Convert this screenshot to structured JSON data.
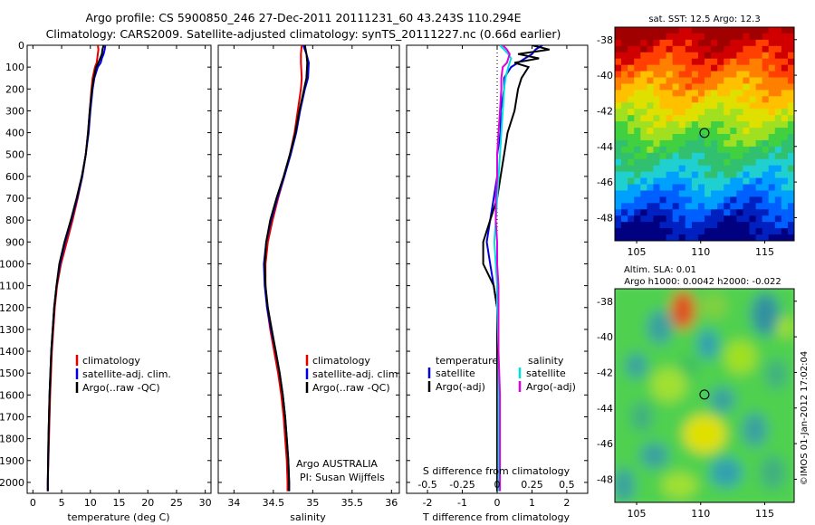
{
  "header": {
    "line1": "Argo profile: CS 5900850_246 27-Dec-2011 20111231_60 43.243S 110.294E",
    "line2": "Climatology: CARS2009. Satellite-adjusted climatology: synTS_20111227.nc (0.66d earlier)"
  },
  "sst_title": "sat. SST: 12.5 Argo: 12.3",
  "sla_title1": "Altim. SLA: 0.01",
  "sla_title2": "Argo h1000: 0.0042 h2000: -0.022",
  "watermark": "©IMOS 01-Jan-2012 17:02:04",
  "panel_notes": {
    "argo_country": "Argo AUSTRALIA",
    "pi": "PI: Susan Wijffels"
  },
  "colors": {
    "climatology": "#e00000",
    "satellite": "#0000e0",
    "argo": "#000000",
    "cyan": "#00e0e0",
    "magenta": "#e000e0"
  },
  "chart_data": [
    {
      "type": "line",
      "panel": "temperature",
      "xlabel": "temperature (deg C)",
      "ylabel": "",
      "xlim": [
        -1,
        31
      ],
      "ylim": [
        2050,
        0
      ],
      "xticks": [
        0,
        5,
        10,
        15,
        20,
        25,
        30
      ],
      "yticks": [
        0,
        100,
        200,
        300,
        400,
        500,
        600,
        700,
        800,
        900,
        1000,
        1100,
        1200,
        1300,
        1400,
        1500,
        1600,
        1700,
        1800,
        1900,
        2000
      ],
      "legend": [
        "climatology",
        "satellite-adj. clim.",
        "Argo(..raw -QC)"
      ],
      "legend_position": "lower-middle",
      "series": [
        {
          "name": "climatology",
          "color": "red",
          "depth": [
            0,
            20,
            40,
            60,
            80,
            100,
            150,
            200,
            300,
            400,
            500,
            600,
            700,
            800,
            900,
            1000,
            1100,
            1200,
            1400,
            1600,
            1800,
            2000,
            2040
          ],
          "values": [
            11.3,
            11.4,
            11.3,
            11.2,
            11.1,
            10.8,
            10.4,
            10.2,
            9.9,
            9.6,
            9.2,
            8.6,
            7.8,
            6.9,
            5.9,
            4.9,
            4.2,
            3.8,
            3.3,
            3.0,
            2.8,
            2.6,
            2.6
          ]
        },
        {
          "name": "satellite",
          "color": "blue",
          "depth": [
            0,
            20,
            40,
            60,
            80,
            100,
            150,
            200,
            300,
            400,
            500,
            600,
            700,
            800,
            900,
            1000,
            1100,
            1200,
            1400,
            1600,
            1800,
            2000,
            2040
          ],
          "values": [
            12.6,
            12.5,
            12.3,
            12.0,
            11.8,
            11.3,
            10.7,
            10.4,
            10.0,
            9.7,
            9.2,
            8.6,
            7.7,
            6.7,
            5.6,
            4.7,
            4.1,
            3.7,
            3.2,
            2.9,
            2.7,
            2.6,
            2.6
          ]
        },
        {
          "name": "argo",
          "color": "black",
          "depth": [
            0,
            20,
            40,
            60,
            80,
            100,
            150,
            200,
            300,
            400,
            500,
            600,
            700,
            800,
            900,
            1000,
            1100,
            1200,
            1400,
            1600,
            1800,
            2000,
            2040
          ],
          "values": [
            12.3,
            12.1,
            12.0,
            11.7,
            11.4,
            11.0,
            10.6,
            10.3,
            9.9,
            9.6,
            9.2,
            8.5,
            7.6,
            6.6,
            5.5,
            4.6,
            4.1,
            3.7,
            3.2,
            2.9,
            2.7,
            2.6,
            2.6
          ]
        }
      ]
    },
    {
      "type": "line",
      "panel": "salinity",
      "xlabel": "salinity",
      "ylabel": "",
      "xlim": [
        33.8,
        36.1
      ],
      "ylim": [
        2050,
        0
      ],
      "xticks": [
        34,
        34.5,
        35,
        35.5,
        36
      ],
      "legend": [
        "climatology",
        "satellite-adj. clim.",
        "Argo(..raw -QC)"
      ],
      "legend_position": "lower-right",
      "series": [
        {
          "name": "climatology",
          "color": "red",
          "depth": [
            0,
            40,
            80,
            150,
            200,
            300,
            400,
            500,
            600,
            700,
            800,
            900,
            1000,
            1100,
            1200,
            1300,
            1400,
            1500,
            1600,
            1700,
            1800,
            1900,
            2000,
            2040
          ],
          "values": [
            34.86,
            34.85,
            34.85,
            34.86,
            34.85,
            34.81,
            34.77,
            34.71,
            34.64,
            34.56,
            34.49,
            34.43,
            34.4,
            34.4,
            34.42,
            34.46,
            34.51,
            34.56,
            34.6,
            34.63,
            34.65,
            34.67,
            34.68,
            34.68
          ]
        },
        {
          "name": "satellite",
          "color": "blue",
          "depth": [
            0,
            40,
            80,
            150,
            200,
            300,
            400,
            500,
            600,
            700,
            800,
            900,
            1000,
            1100,
            1200,
            1300,
            1400,
            1500,
            1600,
            1700,
            1800,
            1900,
            2000,
            2040
          ],
          "values": [
            34.88,
            34.92,
            34.95,
            34.94,
            34.9,
            34.84,
            34.79,
            34.72,
            34.64,
            34.55,
            34.47,
            34.41,
            34.38,
            34.39,
            34.42,
            34.47,
            34.53,
            34.58,
            34.62,
            34.65,
            34.67,
            34.69,
            34.7,
            34.7
          ]
        },
        {
          "name": "argo",
          "color": "black",
          "depth": [
            0,
            40,
            80,
            150,
            200,
            300,
            400,
            500,
            600,
            700,
            800,
            900,
            1000,
            1100,
            1200,
            1300,
            1400,
            1500,
            1600,
            1700,
            1800,
            1900,
            2000,
            2040
          ],
          "values": [
            34.9,
            34.92,
            34.93,
            34.92,
            34.89,
            34.83,
            34.78,
            34.71,
            34.63,
            34.54,
            34.46,
            34.41,
            34.39,
            34.4,
            34.43,
            34.48,
            34.53,
            34.58,
            34.62,
            34.65,
            34.67,
            34.69,
            34.7,
            34.7
          ]
        }
      ]
    },
    {
      "type": "line",
      "panel": "difference",
      "xlabel": "T difference from climatology",
      "xlabel2": "S difference from climatology",
      "xlim": [
        -2.6,
        2.6
      ],
      "xticks": [
        -2,
        -1,
        0,
        1,
        2
      ],
      "xticks2": [
        -0.5,
        -0.25,
        0,
        0.25,
        0.5
      ],
      "ylim": [
        2050,
        0
      ],
      "legend": {
        "temperature_header": "temperature",
        "salinity_header": "salinity",
        "temperature": [
          "satellite",
          "Argo(-adj)"
        ],
        "salinity": [
          "satellite",
          "Argo(-adj)"
        ]
      },
      "series": [
        {
          "name": "T satellite",
          "color": "blue",
          "depth": [
            0,
            20,
            40,
            60,
            80,
            100,
            150,
            200,
            300,
            400,
            500,
            600,
            700,
            800,
            900,
            1000,
            1100,
            1200,
            1400,
            1600,
            1800,
            2000,
            2040
          ],
          "values": [
            1.3,
            1.1,
            1.0,
            0.8,
            0.6,
            0.4,
            0.2,
            0.2,
            0.1,
            0.1,
            0.0,
            0.0,
            -0.1,
            -0.2,
            -0.3,
            -0.2,
            -0.1,
            0.0,
            0.0,
            0.0,
            0.0,
            0.0,
            0.0
          ]
        },
        {
          "name": "T Argo(-adj)",
          "color": "black",
          "depth": [
            0,
            20,
            40,
            60,
            80,
            100,
            150,
            200,
            300,
            400,
            500,
            600,
            700,
            800,
            900,
            1000,
            1100,
            1200,
            1400,
            1600,
            1800,
            2000,
            2040
          ],
          "values": [
            1.0,
            1.5,
            0.6,
            1.2,
            0.5,
            0.9,
            0.7,
            0.6,
            0.5,
            0.3,
            0.2,
            0.1,
            0.0,
            -0.2,
            -0.4,
            -0.4,
            -0.1,
            0.0,
            0.0,
            0.0,
            0.0,
            0.0,
            0.0
          ]
        },
        {
          "name": "S satellite",
          "color": "cyan",
          "depth": [
            0,
            20,
            40,
            60,
            80,
            100,
            150,
            200,
            300,
            400,
            500,
            600,
            700,
            800,
            900,
            1000,
            1100,
            1200,
            1400,
            1600,
            1800,
            2000,
            2040
          ],
          "values": [
            0.02,
            0.05,
            0.08,
            0.1,
            0.09,
            0.08,
            0.06,
            0.05,
            0.04,
            0.03,
            0.02,
            0.01,
            0.0,
            -0.01,
            -0.02,
            -0.01,
            0.0,
            0.0,
            0.01,
            0.01,
            0.01,
            0.01,
            0.01
          ]
        },
        {
          "name": "S Argo(-adj)",
          "color": "magenta",
          "depth": [
            0,
            20,
            40,
            60,
            80,
            100,
            150,
            200,
            300,
            400,
            500,
            600,
            700,
            800,
            900,
            1000,
            1100,
            1200,
            1400,
            1600,
            1800,
            2000,
            2040
          ],
          "values": [
            0.04,
            0.07,
            0.09,
            0.08,
            0.07,
            0.04,
            0.03,
            0.03,
            0.02,
            0.01,
            0.0,
            0.0,
            -0.01,
            -0.01,
            0.0,
            0.0,
            0.01,
            0.01,
            0.01,
            0.02,
            0.02,
            0.02,
            0.02
          ]
        }
      ]
    },
    {
      "type": "heatmap",
      "panel": "sst_map",
      "title": "sat. SST: 12.5 Argo: 12.3",
      "xlim": [
        103.3,
        117.3
      ],
      "ylim": [
        -49.3,
        -37.3
      ],
      "xticks": [
        105,
        110,
        115
      ],
      "yticks": [
        -38,
        -40,
        -42,
        -44,
        -46,
        -48
      ],
      "argo_position": [
        110.294,
        -43.243
      ]
    },
    {
      "type": "heatmap",
      "panel": "sla_map",
      "title": "Altim. SLA: 0.01",
      "xlim": [
        103.3,
        117.3
      ],
      "ylim": [
        -49.3,
        -37.3
      ],
      "xticks": [
        105,
        110,
        115
      ],
      "yticks": [
        -38,
        -40,
        -42,
        -44,
        -46,
        -48
      ],
      "argo_position": [
        110.294,
        -43.243
      ]
    }
  ]
}
